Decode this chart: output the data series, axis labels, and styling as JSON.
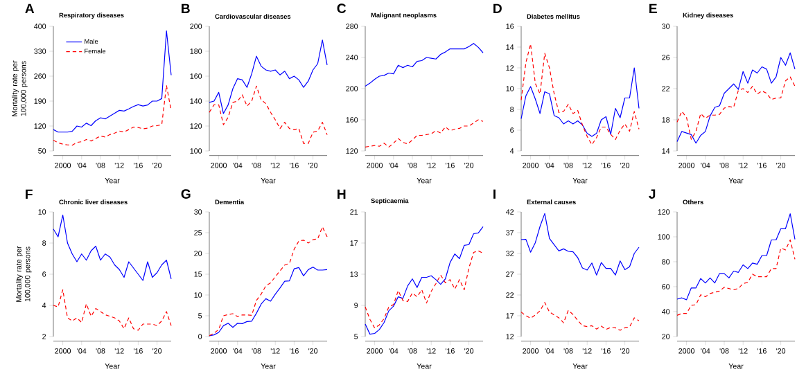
{
  "chart_data": [
    {
      "type": "line",
      "title": "Respiratory diseases",
      "annotations": [
        "A"
      ],
      "xlabel": "Year",
      "ylabel": "Mortality rate per 100,000 persons",
      "legend": "top left",
      "x": [
        1998,
        1999,
        2000,
        2001,
        2002,
        2003,
        2004,
        2005,
        2006,
        2007,
        2008,
        2009,
        2010,
        2011,
        2012,
        2013,
        2014,
        2015,
        2016,
        2017,
        2018,
        2019,
        2020,
        2021,
        2022,
        2023
      ],
      "xlim": [
        1998,
        2023
      ],
      "xticks": [
        2000,
        {
          "value": 2004,
          "label": "'04"
        },
        {
          "value": 2008,
          "label": "'08"
        },
        {
          "value": 2012,
          "label": "'12"
        },
        {
          "value": 2016,
          "label": "'16"
        },
        {
          "value": 2020,
          "label": "'20"
        }
      ],
      "ylim": [
        50,
        400
      ],
      "yticks": [
        50,
        120,
        190,
        260,
        330,
        400
      ],
      "series": [
        {
          "name": "Male",
          "color": "#0000ff",
          "line_style": "solid",
          "values": [
            110,
            103,
            103,
            103,
            105,
            120,
            117,
            128,
            121,
            135,
            143,
            140,
            148,
            156,
            164,
            162,
            168,
            175,
            180,
            176,
            179,
            190,
            190,
            197,
            387,
            263
          ]
        },
        {
          "name": "Female",
          "color": "#ff0000",
          "line_style": "dashed",
          "values": [
            80,
            73,
            69,
            67,
            66,
            74,
            76,
            82,
            78,
            85,
            92,
            89,
            96,
            100,
            106,
            103,
            110,
            117,
            116,
            112,
            114,
            120,
            121,
            124,
            234,
            163
          ]
        }
      ]
    },
    {
      "type": "line",
      "title": "Cardiovascular diseases",
      "annotations": [
        "B"
      ],
      "xlabel": "Year",
      "x": [
        1998,
        1999,
        2000,
        2001,
        2002,
        2003,
        2004,
        2005,
        2006,
        2007,
        2008,
        2009,
        2010,
        2011,
        2012,
        2013,
        2014,
        2015,
        2016,
        2017,
        2018,
        2019,
        2020,
        2021,
        2022,
        2023
      ],
      "xlim": [
        1998,
        2023
      ],
      "xticks": [
        2000,
        {
          "value": 2004,
          "label": "'04"
        },
        {
          "value": 2008,
          "label": "'08"
        },
        {
          "value": 2012,
          "label": "'12"
        },
        {
          "value": 2016,
          "label": "'16"
        },
        {
          "value": 2020,
          "label": "'20"
        }
      ],
      "ylim": [
        100,
        200
      ],
      "yticks": [
        100,
        120,
        140,
        160,
        180,
        200
      ],
      "series": [
        {
          "color": "#0000ff",
          "line_style": "solid",
          "values": [
            139,
            140,
            147,
            130,
            137,
            150,
            158,
            157,
            151,
            162,
            176,
            168,
            165,
            164,
            165,
            161,
            164,
            158,
            160,
            157,
            151,
            156,
            165,
            170,
            189,
            169
          ]
        },
        {
          "color": "#ff0000",
          "line_style": "dashed",
          "values": [
            131,
            137,
            137,
            121,
            127,
            139,
            140,
            145,
            136,
            140,
            152,
            141,
            138,
            131,
            125,
            118,
            123,
            118,
            117,
            118,
            106,
            106,
            115,
            116,
            123,
            113
          ]
        }
      ]
    },
    {
      "type": "line",
      "title": "Malignant neoplasms",
      "annotations": [
        "C"
      ],
      "xlabel": "Year",
      "x": [
        1998,
        1999,
        2000,
        2001,
        2002,
        2003,
        2004,
        2005,
        2006,
        2007,
        2008,
        2009,
        2010,
        2011,
        2012,
        2013,
        2014,
        2015,
        2016,
        2017,
        2018,
        2019,
        2020,
        2021,
        2022,
        2023
      ],
      "xlim": [
        1998,
        2023
      ],
      "xticks": [
        2000,
        {
          "value": 2004,
          "label": "'04"
        },
        {
          "value": 2008,
          "label": "'08"
        },
        {
          "value": 2012,
          "label": "'12"
        },
        {
          "value": 2016,
          "label": "'16"
        },
        {
          "value": 2020,
          "label": "'20"
        }
      ],
      "ylim": [
        120,
        280
      ],
      "yticks": [
        120,
        160,
        200,
        240,
        280
      ],
      "series": [
        {
          "color": "#0000ff",
          "line_style": "solid",
          "values": [
            203,
            207,
            212,
            216,
            217,
            220,
            219,
            230,
            227,
            230,
            228,
            235,
            236,
            240,
            239,
            238,
            244,
            247,
            251,
            251,
            251,
            251,
            254,
            258,
            253,
            246
          ]
        },
        {
          "color": "#ff0000",
          "line_style": "dashed",
          "values": [
            125,
            126,
            127,
            126,
            130,
            125,
            130,
            136,
            131,
            129,
            134,
            140,
            140,
            141,
            142,
            146,
            143,
            151,
            146,
            148,
            149,
            152,
            152,
            156,
            160,
            158
          ]
        }
      ]
    },
    {
      "type": "line",
      "title": "Diabetes mellitus",
      "annotations": [
        "D"
      ],
      "xlabel": "Year",
      "x": [
        1998,
        1999,
        2000,
        2001,
        2002,
        2003,
        2004,
        2005,
        2006,
        2007,
        2008,
        2009,
        2010,
        2011,
        2012,
        2013,
        2014,
        2015,
        2016,
        2017,
        2018,
        2019,
        2020,
        2021,
        2022,
        2023
      ],
      "xlim": [
        1998,
        2023
      ],
      "xticks": [
        2000,
        {
          "value": 2004,
          "label": "'04"
        },
        {
          "value": 2008,
          "label": "'08"
        },
        {
          "value": 2012,
          "label": "'12"
        },
        {
          "value": 2016,
          "label": "'16"
        },
        {
          "value": 2020,
          "label": "'20"
        }
      ],
      "ylim": [
        4,
        16
      ],
      "yticks": [
        4,
        6,
        8,
        10,
        12,
        14,
        16
      ],
      "series": [
        {
          "color": "#0000ff",
          "line_style": "solid",
          "values": [
            7.1,
            9.3,
            10.2,
            9.0,
            7.6,
            9.7,
            9.5,
            7.4,
            7.2,
            6.6,
            6.9,
            6.6,
            6.9,
            6.5,
            5.7,
            5.4,
            5.7,
            7.0,
            7.3,
            5.6,
            8.1,
            7.2,
            9.1,
            9.1,
            12.0,
            8.1
          ]
        },
        {
          "color": "#ff0000",
          "line_style": "dashed",
          "values": [
            8.9,
            12.5,
            14.3,
            10.5,
            9.5,
            13.4,
            12.0,
            9.5,
            7.7,
            7.8,
            8.5,
            7.6,
            7.9,
            6.5,
            5.4,
            4.6,
            5.3,
            6.3,
            6.3,
            5.6,
            5.1,
            6.0,
            6.6,
            5.9,
            7.8,
            6.1
          ]
        }
      ]
    },
    {
      "type": "line",
      "title": "Kidney diseases",
      "annotations": [
        "E"
      ],
      "xlabel": "Year",
      "x": [
        1998,
        1999,
        2000,
        2001,
        2002,
        2003,
        2004,
        2005,
        2006,
        2007,
        2008,
        2009,
        2010,
        2011,
        2012,
        2013,
        2014,
        2015,
        2016,
        2017,
        2018,
        2019,
        2020,
        2021,
        2022,
        2023
      ],
      "xlim": [
        1998,
        2023
      ],
      "xticks": [
        2000,
        {
          "value": 2004,
          "label": "'04"
        },
        {
          "value": 2008,
          "label": "'08"
        },
        {
          "value": 2012,
          "label": "'12"
        },
        {
          "value": 2016,
          "label": "'16"
        },
        {
          "value": 2020,
          "label": "'20"
        }
      ],
      "ylim": [
        14,
        30
      ],
      "yticks": [
        14,
        18,
        22,
        26,
        30
      ],
      "series": [
        {
          "color": "#0000ff",
          "line_style": "solid",
          "values": [
            15.2,
            16.5,
            16.3,
            16.1,
            15.0,
            16.0,
            16.5,
            18.5,
            19.6,
            19.8,
            21.4,
            22.0,
            22.6,
            21.9,
            24.2,
            22.7,
            24.4,
            24.0,
            24.8,
            24.5,
            22.7,
            23.5,
            26.0,
            25.0,
            26.6,
            24.5
          ]
        },
        {
          "color": "#ff0000",
          "line_style": "dashed",
          "values": [
            17.7,
            19.1,
            18.3,
            15.5,
            16.5,
            18.8,
            18.2,
            18.6,
            18.6,
            18.7,
            19.5,
            19.7,
            19.6,
            21.8,
            22.0,
            21.5,
            22.3,
            21.3,
            21.7,
            21.4,
            20.6,
            20.8,
            20.8,
            23.0,
            23.5,
            22.3
          ]
        }
      ]
    },
    {
      "type": "line",
      "title": "Chronic liver diseases",
      "annotations": [
        "F"
      ],
      "xlabel": "Year",
      "ylabel": "Mortality rate per 100,000 persons",
      "x": [
        1998,
        1999,
        2000,
        2001,
        2002,
        2003,
        2004,
        2005,
        2006,
        2007,
        2008,
        2009,
        2010,
        2011,
        2012,
        2013,
        2014,
        2015,
        2016,
        2017,
        2018,
        2019,
        2020,
        2021,
        2022,
        2023
      ],
      "xlim": [
        1998,
        2023
      ],
      "xticks": [
        2000,
        {
          "value": 2004,
          "label": "'04"
        },
        {
          "value": 2008,
          "label": "'08"
        },
        {
          "value": 2012,
          "label": "'12"
        },
        {
          "value": 2016,
          "label": "'16"
        },
        {
          "value": 2020,
          "label": "'20"
        }
      ],
      "ylim": [
        2,
        10
      ],
      "yticks": [
        2,
        4,
        6,
        8,
        10
      ],
      "series": [
        {
          "color": "#0000ff",
          "line_style": "solid",
          "values": [
            8.9,
            8.4,
            9.8,
            8.0,
            7.3,
            6.8,
            7.3,
            6.9,
            7.5,
            7.8,
            6.9,
            7.3,
            7.1,
            6.6,
            6.3,
            5.8,
            6.8,
            6.4,
            6.0,
            5.6,
            6.8,
            5.8,
            6.1,
            6.6,
            6.9,
            5.7
          ]
        },
        {
          "color": "#ff0000",
          "line_style": "dashed",
          "values": [
            4.0,
            3.9,
            5.0,
            3.2,
            3.0,
            3.2,
            2.9,
            4.1,
            3.3,
            3.8,
            3.6,
            3.4,
            3.3,
            3.2,
            3.0,
            2.5,
            3.2,
            2.5,
            2.4,
            2.8,
            2.8,
            2.8,
            2.7,
            3.0,
            3.6,
            2.7
          ]
        }
      ]
    },
    {
      "type": "line",
      "title": "Dementia",
      "annotations": [
        "G"
      ],
      "xlabel": "Year",
      "x": [
        1998,
        1999,
        2000,
        2001,
        2002,
        2003,
        2004,
        2005,
        2006,
        2007,
        2008,
        2009,
        2010,
        2011,
        2012,
        2013,
        2014,
        2015,
        2016,
        2017,
        2018,
        2019,
        2020,
        2021,
        2022,
        2023
      ],
      "xlim": [
        1998,
        2023
      ],
      "xticks": [
        2000,
        {
          "value": 2004,
          "label": "'04"
        },
        {
          "value": 2008,
          "label": "'08"
        },
        {
          "value": 2012,
          "label": "'12"
        },
        {
          "value": 2016,
          "label": "'16"
        },
        {
          "value": 2020,
          "label": "'20"
        }
      ],
      "ylim": [
        0,
        30
      ],
      "yticks": [
        0,
        5,
        10,
        15,
        20,
        25,
        30
      ],
      "series": [
        {
          "color": "#0000ff",
          "line_style": "solid",
          "values": [
            0.2,
            0.4,
            1.0,
            2.6,
            3.2,
            2.2,
            3.2,
            3.1,
            3.6,
            3.7,
            5.6,
            7.8,
            9.1,
            8.5,
            10.2,
            11.7,
            13.3,
            13.4,
            16.3,
            16.6,
            14.6,
            16.1,
            16.7,
            16.0,
            16.0,
            16.1
          ]
        },
        {
          "color": "#ff0000",
          "line_style": "dashed",
          "values": [
            0.2,
            0.8,
            1.7,
            5.0,
            5.3,
            5.5,
            4.8,
            5.2,
            5.2,
            5.1,
            8.7,
            10.2,
            12.2,
            12.9,
            14.4,
            15.8,
            17.2,
            17.6,
            21.0,
            23.0,
            23.2,
            22.5,
            23.3,
            23.5,
            26.4,
            24.0
          ]
        }
      ]
    },
    {
      "type": "line",
      "title": "Septicaemia",
      "annotations": [
        "H"
      ],
      "xlabel": "Year",
      "x": [
        1998,
        1999,
        2000,
        2001,
        2002,
        2003,
        2004,
        2005,
        2006,
        2007,
        2008,
        2009,
        2010,
        2011,
        2012,
        2013,
        2014,
        2015,
        2016,
        2017,
        2018,
        2019,
        2020,
        2021,
        2022,
        2023
      ],
      "xlim": [
        1998,
        2023
      ],
      "xticks": [
        2000,
        {
          "value": 2004,
          "label": "'04"
        },
        {
          "value": 2008,
          "label": "'08"
        },
        {
          "value": 2012,
          "label": "'12"
        },
        {
          "value": 2016,
          "label": "'16"
        },
        {
          "value": 2020,
          "label": "'20"
        }
      ],
      "ylim": [
        5,
        21
      ],
      "yticks": [
        5,
        9,
        13,
        17,
        21
      ],
      "series": [
        {
          "color": "#0000ff",
          "line_style": "solid",
          "values": [
            6.6,
            5.3,
            5.4,
            5.9,
            6.8,
            8.3,
            8.9,
            10.1,
            9.9,
            11.5,
            12.4,
            11.3,
            12.6,
            12.6,
            12.8,
            12.3,
            11.7,
            12.4,
            14.5,
            15.6,
            15.0,
            16.7,
            16.8,
            18.2,
            18.3,
            19.1
          ]
        },
        {
          "color": "#ff0000",
          "line_style": "dashed",
          "values": [
            8.8,
            7.2,
            6.1,
            6.5,
            7.3,
            8.8,
            9.1,
            10.9,
            9.6,
            9.5,
            10.6,
            10.1,
            11.0,
            9.3,
            10.8,
            11.8,
            12.9,
            11.9,
            12.3,
            11.1,
            12.3,
            11.0,
            13.8,
            15.8,
            16.0,
            15.7
          ]
        }
      ]
    },
    {
      "type": "line",
      "title": "External causes",
      "annotations": [
        "I"
      ],
      "xlabel": "Year",
      "x": [
        1998,
        1999,
        2000,
        2001,
        2002,
        2003,
        2004,
        2005,
        2006,
        2007,
        2008,
        2009,
        2010,
        2011,
        2012,
        2013,
        2014,
        2015,
        2016,
        2017,
        2018,
        2019,
        2020,
        2021,
        2022,
        2023
      ],
      "xlim": [
        1998,
        2023
      ],
      "xticks": [
        2000,
        {
          "value": 2004,
          "label": "'04"
        },
        {
          "value": 2008,
          "label": "'08"
        },
        {
          "value": 2012,
          "label": "'12"
        },
        {
          "value": 2016,
          "label": "'16"
        },
        {
          "value": 2020,
          "label": "'20"
        }
      ],
      "ylim": [
        12,
        42
      ],
      "yticks": [
        12,
        17,
        22,
        27,
        32,
        37,
        42
      ],
      "series": [
        {
          "color": "#0000ff",
          "line_style": "solid",
          "values": [
            35.3,
            35.4,
            32.3,
            34.6,
            38.5,
            41.6,
            35.6,
            34.1,
            32.6,
            33.1,
            32.5,
            32.4,
            31.0,
            28.5,
            28.0,
            29.7,
            26.8,
            29.8,
            28.4,
            28.4,
            26.8,
            30.2,
            28.1,
            28.8,
            32.0,
            33.5
          ]
        },
        {
          "color": "#ff0000",
          "line_style": "dashed",
          "values": [
            17.9,
            17.0,
            16.4,
            17.2,
            18.2,
            20.2,
            17.9,
            17.2,
            16.5,
            15.3,
            18.3,
            17.3,
            15.9,
            14.6,
            14.4,
            14.6,
            13.8,
            14.5,
            13.7,
            14.2,
            14.1,
            13.5,
            14.1,
            14.3,
            16.5,
            15.8
          ]
        }
      ]
    },
    {
      "type": "line",
      "title": "Others",
      "annotations": [
        "J"
      ],
      "xlabel": "Year",
      "x": [
        1998,
        1999,
        2000,
        2001,
        2002,
        2003,
        2004,
        2005,
        2006,
        2007,
        2008,
        2009,
        2010,
        2011,
        2012,
        2013,
        2014,
        2015,
        2016,
        2017,
        2018,
        2019,
        2020,
        2021,
        2022,
        2023
      ],
      "xlim": [
        1998,
        2023
      ],
      "xticks": [
        2000,
        {
          "value": 2004,
          "label": "'04"
        },
        {
          "value": 2008,
          "label": "'08"
        },
        {
          "value": 2012,
          "label": "'12"
        },
        {
          "value": 2016,
          "label": "'16"
        },
        {
          "value": 2020,
          "label": "'20"
        }
      ],
      "ylim": [
        20,
        120
      ],
      "yticks": [
        20,
        40,
        60,
        80,
        100,
        120
      ],
      "series": [
        {
          "color": "#0000ff",
          "line_style": "solid",
          "values": [
            50,
            51,
            49.5,
            59,
            59,
            66.5,
            63,
            67,
            63,
            70.5,
            70.5,
            67,
            72.5,
            71.5,
            77.5,
            74.5,
            79,
            78,
            85,
            85,
            97.5,
            97.5,
            106.5,
            106.5,
            118.5,
            98
          ]
        },
        {
          "color": "#ff0000",
          "line_style": "dashed",
          "values": [
            37,
            38.5,
            38.5,
            45,
            45.5,
            53.5,
            52,
            54.5,
            55.5,
            56.5,
            59.5,
            58.5,
            57.5,
            58.5,
            62.5,
            63.5,
            70,
            68,
            68,
            68,
            74.5,
            74.5,
            91,
            89.5,
            97.5,
            82
          ]
        }
      ]
    }
  ]
}
